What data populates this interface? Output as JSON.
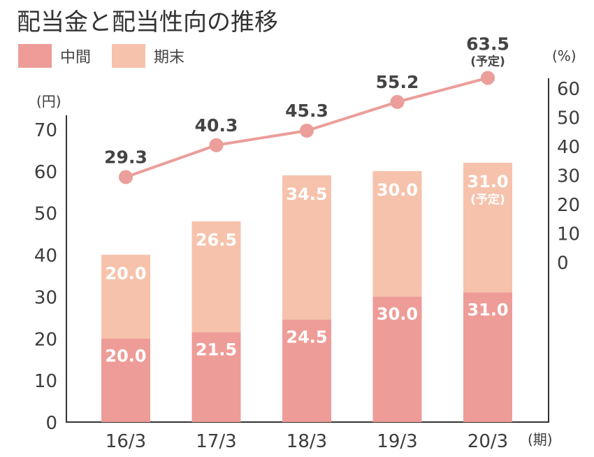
{
  "title": "配当金と配当性向の推移",
  "colors": {
    "interim": "#ee9c97",
    "final": "#f6c2ab",
    "line": "#eb9e9a",
    "axis": "#333333",
    "label": "#3c3c3c"
  },
  "chart_data": {
    "type": "bar",
    "title": "配当金と配当性向の推移",
    "categories": [
      "16/3",
      "17/3",
      "18/3",
      "19/3",
      "20/3"
    ],
    "x_unit": "(期)",
    "left_axis": {
      "unit": "(円)",
      "ylim": [
        0,
        70
      ],
      "ticks": [
        "0",
        "10",
        "20",
        "30",
        "40",
        "50",
        "60",
        "70"
      ]
    },
    "right_axis": {
      "unit": "(%)",
      "ylim": [
        0,
        60
      ],
      "ticks": [
        "0",
        "10",
        "20",
        "30",
        "40",
        "50",
        "60"
      ]
    },
    "series": [
      {
        "name": "中間",
        "axis": "left",
        "values": [
          20.0,
          21.5,
          24.5,
          30.0,
          31.0
        ],
        "labels": [
          "20.0",
          "21.5",
          "24.5",
          "30.0",
          "31.0"
        ]
      },
      {
        "name": "期末",
        "axis": "left",
        "values": [
          20.0,
          26.5,
          34.5,
          30.0,
          31.0
        ],
        "labels": [
          "20.0",
          "26.5",
          "34.5",
          "30.0",
          "31.0"
        ],
        "notes": [
          "",
          "",
          "",
          "",
          "(予定)"
        ]
      },
      {
        "type": "line",
        "axis": "right",
        "values": [
          29.3,
          40.3,
          45.3,
          55.2,
          63.5
        ],
        "labels": [
          "29.3",
          "40.3",
          "45.3",
          "55.2",
          "63.5"
        ],
        "notes": [
          "",
          "",
          "",
          "",
          "(予定)"
        ]
      }
    ],
    "grid": false,
    "legend": "top-left"
  }
}
